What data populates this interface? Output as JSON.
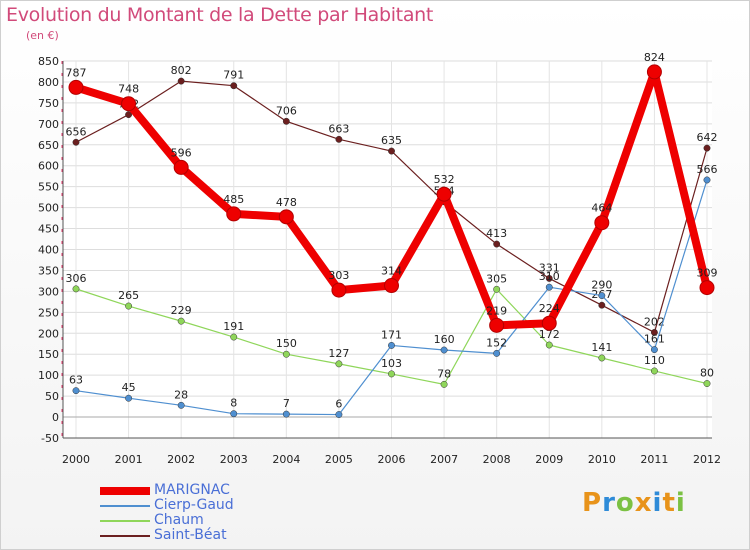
{
  "title": "Evolution du Montant de la Dette par Habitant",
  "subtitle": "(en €)",
  "chart_data": {
    "type": "line",
    "title": "Evolution du Montant de la Dette par Habitant",
    "ylabel": "(en €)",
    "ylim": [
      -50,
      850
    ],
    "yticks": [
      -50,
      0,
      50,
      100,
      150,
      200,
      250,
      300,
      350,
      400,
      450,
      500,
      550,
      600,
      650,
      700,
      750,
      800,
      850
    ],
    "categories": [
      "2000",
      "2001",
      "2002",
      "2003",
      "2004",
      "2005",
      "2006",
      "2007",
      "2008",
      "2009",
      "2010",
      "2011",
      "2012"
    ],
    "grid": true,
    "legend_position": "bottom-left",
    "series": [
      {
        "name": "Saint-Béat",
        "color": "#6b1f1f",
        "values": [
          656,
          722,
          802,
          791,
          706,
          663,
          635,
          514,
          413,
          331,
          267,
          202,
          642
        ],
        "labels": [
          "656",
          "722",
          "802",
          "791",
          "706",
          "663",
          "635",
          "514",
          "413",
          "331",
          "267",
          "202",
          "642"
        ]
      },
      {
        "name": "Chaum",
        "color": "#8fd65a",
        "values": [
          306,
          265,
          229,
          191,
          150,
          127,
          103,
          78,
          305,
          172,
          141,
          110,
          80
        ],
        "labels": [
          "306",
          "265",
          "229",
          "191",
          "150",
          "127",
          "103",
          "78",
          "305",
          "172",
          "141",
          "110",
          "80"
        ]
      },
      {
        "name": "Cierp-Gaud",
        "color": "#4f8fd0",
        "values": [
          63,
          45,
          28,
          8,
          7,
          6,
          171,
          160,
          152,
          310,
          290,
          161,
          566
        ],
        "labels": [
          "63",
          "45",
          "28",
          "8",
          "7",
          "6",
          "171",
          "160",
          "152",
          "310",
          "290",
          "161",
          "566"
        ]
      },
      {
        "name": "MARIGNAC",
        "color": "#ee0000",
        "values": [
          787,
          748,
          596,
          485,
          478,
          303,
          314,
          532,
          219,
          224,
          464,
          824,
          309
        ],
        "labels": [
          "787",
          "748",
          "596",
          "485",
          "478",
          "303",
          "314",
          "532",
          "219",
          "224",
          "464",
          "824",
          "309"
        ]
      }
    ],
    "legend_order": [
      "MARIGNAC",
      "Cierp-Gaud",
      "Chaum",
      "Saint-Béat"
    ]
  },
  "logo": {
    "letters": [
      "P",
      "r",
      "o",
      "x",
      "i",
      "t",
      "i"
    ],
    "colors": [
      "#e8931a",
      "#2e8bd8",
      "#7bc143",
      "#e8931a",
      "#2e8bd8",
      "#e8931a",
      "#7bc143"
    ]
  }
}
